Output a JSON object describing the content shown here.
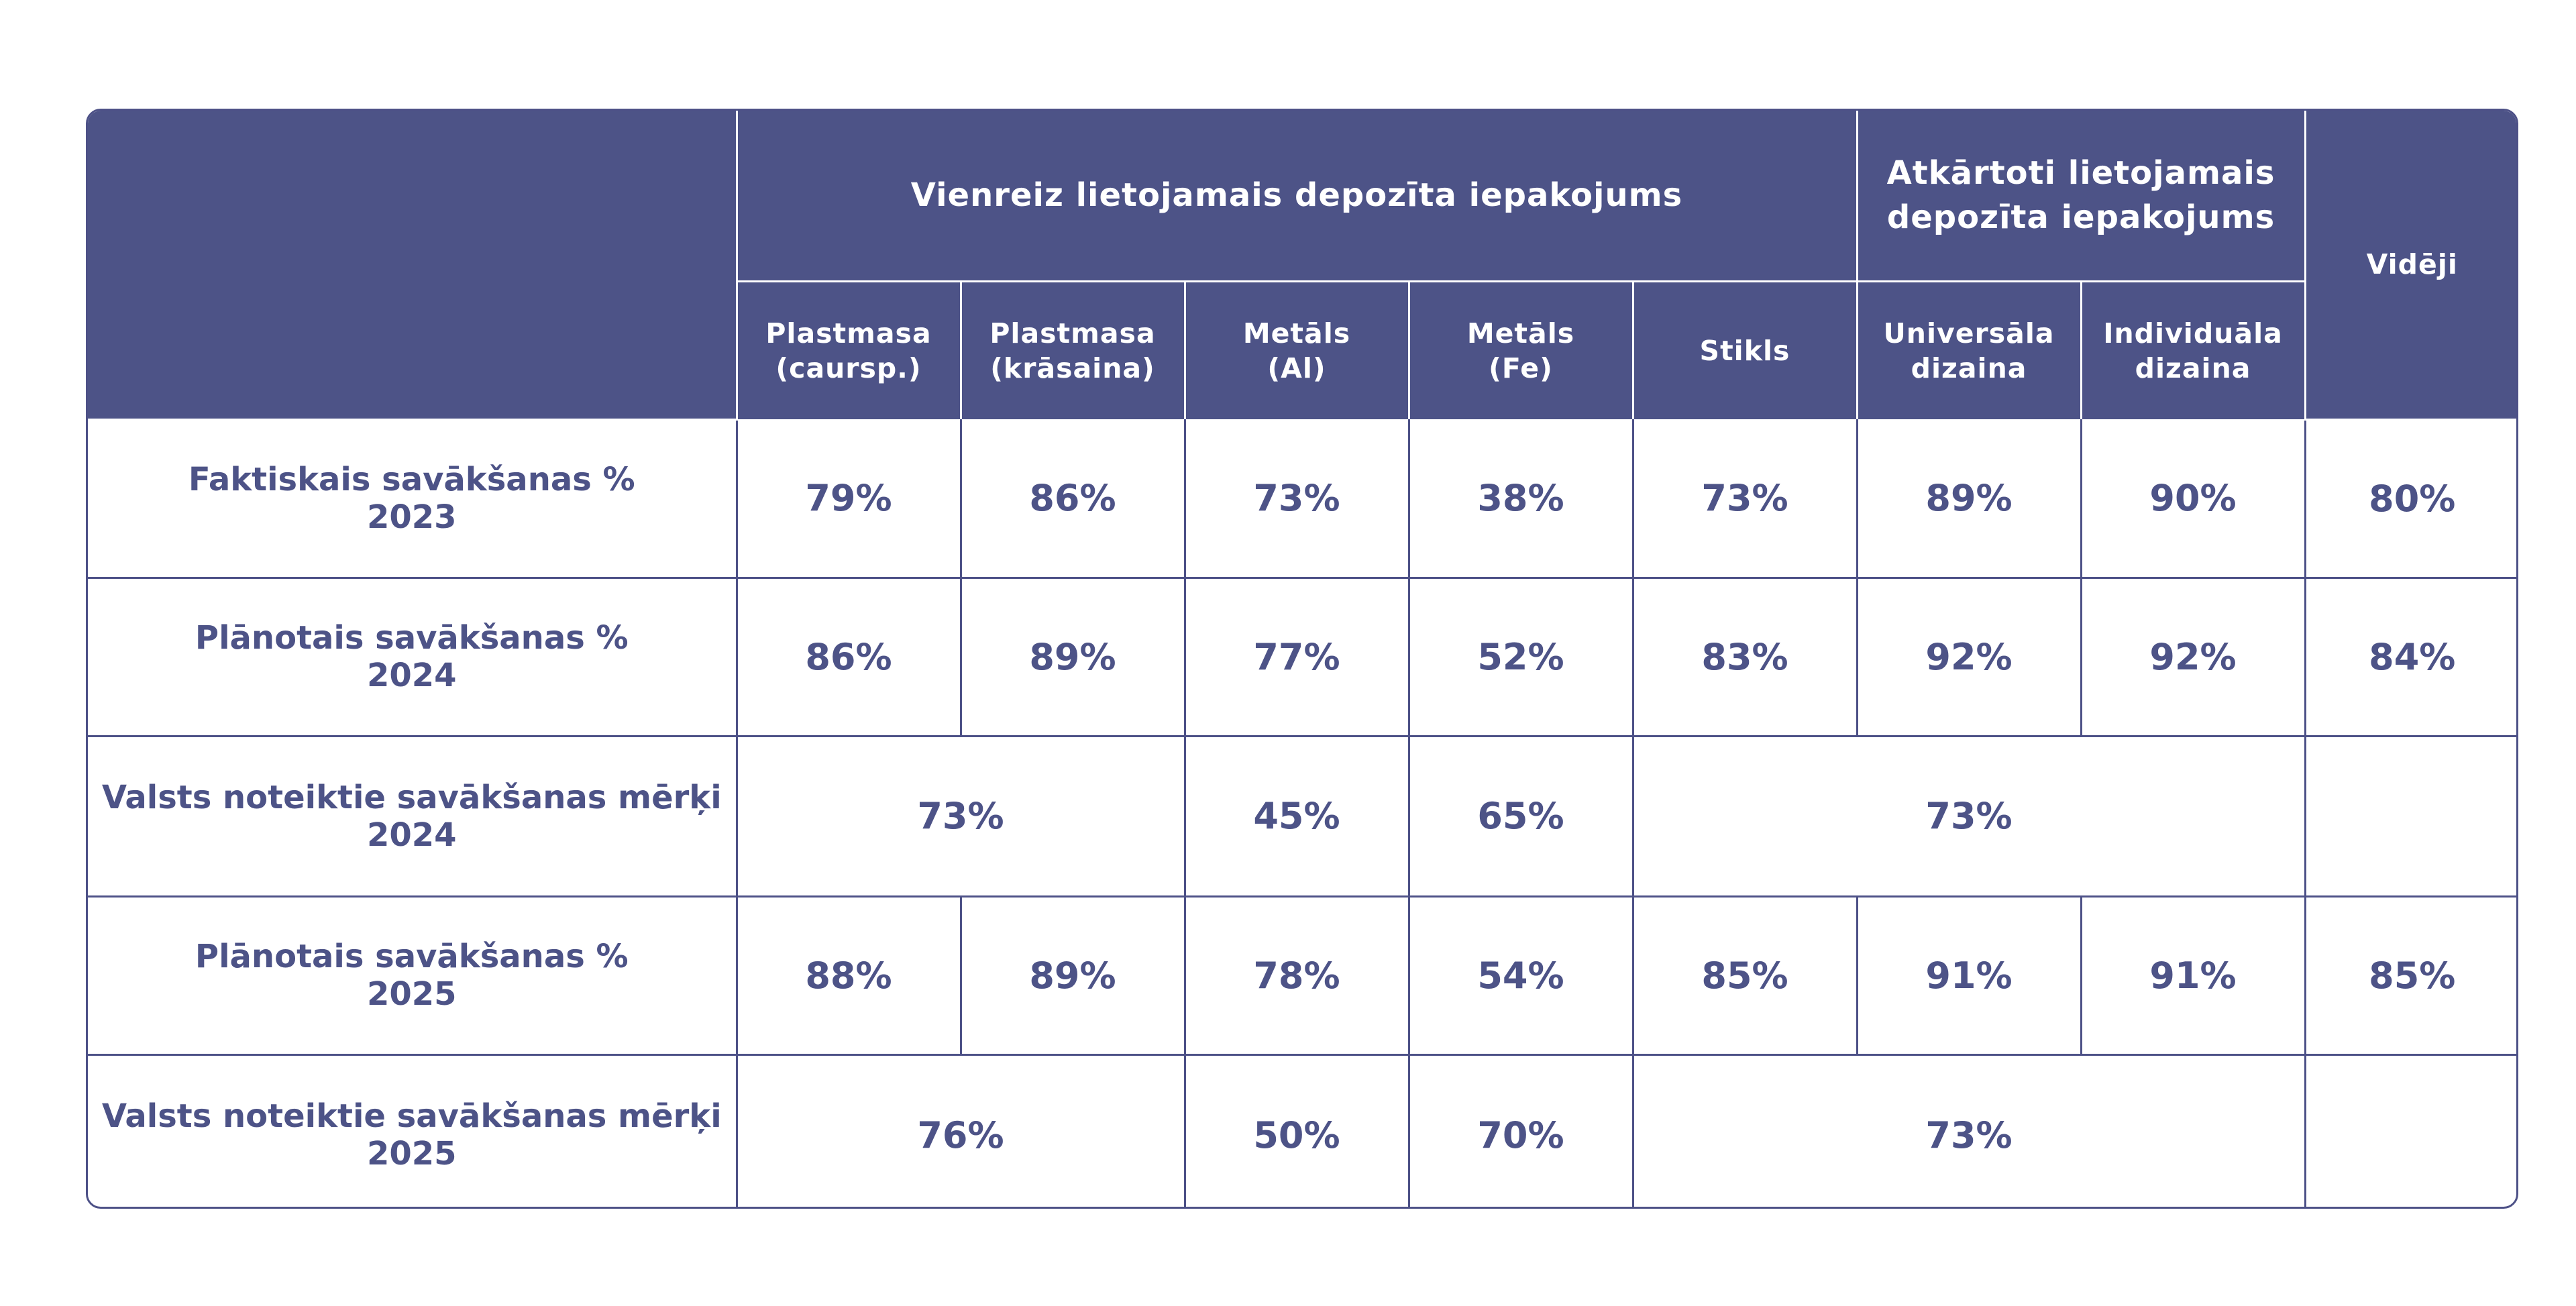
{
  "header": {
    "group_single_use": "Vienreiz lietojamais depozīta iepakojums",
    "group_reusable_line1": "Atkārtoti lietojamais",
    "group_reusable_line2": "depozīta iepakojums",
    "average": "Vidēji",
    "columns": [
      {
        "line1": "Plastmasa",
        "line2": "(caursp.)"
      },
      {
        "line1": "Plastmasa",
        "line2": "(krāsaina)"
      },
      {
        "line1": "Metāls",
        "line2": "(Al)"
      },
      {
        "line1": "Metāls",
        "line2": "(Fe)"
      },
      {
        "line1": "Stikls",
        "line2": ""
      },
      {
        "line1": "Universāla",
        "line2": "dizaina"
      },
      {
        "line1": "Individuāla",
        "line2": "dizaina"
      }
    ]
  },
  "rows": [
    {
      "label_line1": "Faktiskais savākšanas %",
      "label_line2": "2023",
      "values": [
        "79%",
        "86%",
        "73%",
        "38%",
        "73%",
        "89%",
        "90%"
      ],
      "average": "80%"
    },
    {
      "label_line1": "Plānotais savākšanas %",
      "label_line2": "2024",
      "values": [
        "86%",
        "89%",
        "77%",
        "52%",
        "83%",
        "92%",
        "92%"
      ],
      "average": "84%"
    },
    {
      "label_line1": "Valsts noteiktie savākšanas mērķi",
      "label_line2": "2024",
      "plastic": "73%",
      "aluminium": "45%",
      "iron": "65%",
      "glass_reusable": "73%",
      "average": ""
    },
    {
      "label_line1": "Plānotais savākšanas %",
      "label_line2": "2025",
      "values": [
        "88%",
        "89%",
        "78%",
        "54%",
        "85%",
        "91%",
        "91%"
      ],
      "average": "85%"
    },
    {
      "label_line1": "Valsts noteiktie savākšanas mērķi",
      "label_line2": "2025",
      "plastic": "76%",
      "aluminium": "50%",
      "iron": "70%",
      "glass_reusable": "73%",
      "average": ""
    }
  ]
}
